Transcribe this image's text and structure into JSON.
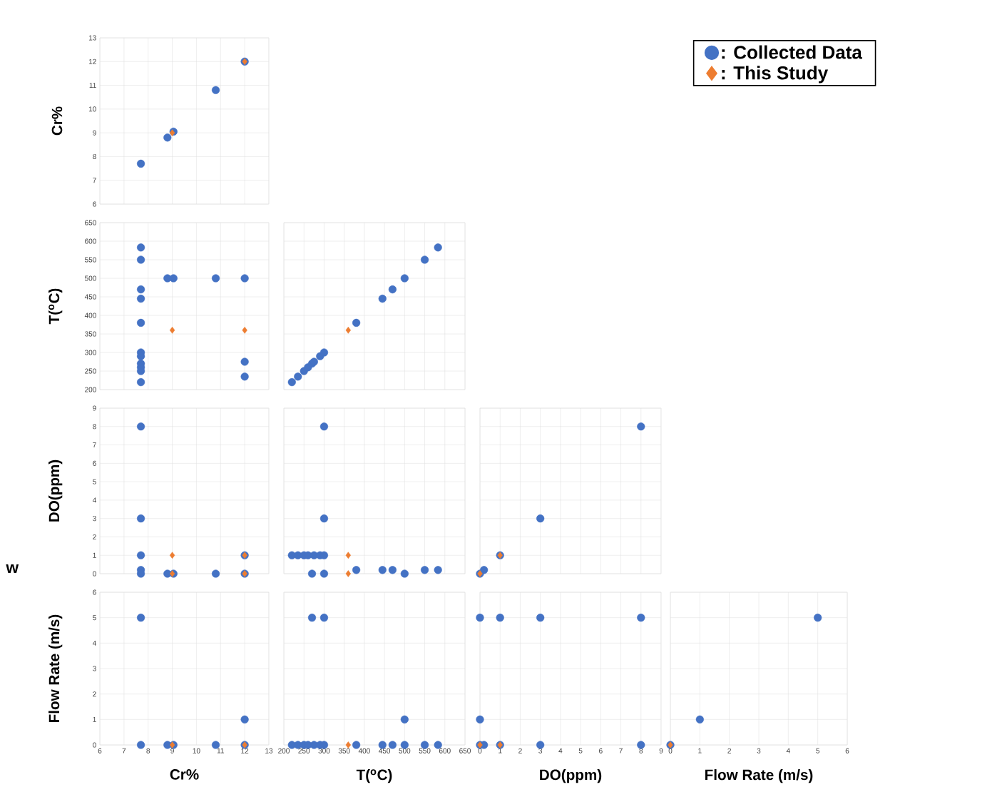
{
  "chart_data": [
    {
      "type": "scatter",
      "ylabel": "Cr%",
      "xlim": [
        6,
        13
      ],
      "ylim": [
        6,
        13
      ],
      "xticks": [
        6,
        7,
        8,
        9,
        10,
        11,
        12,
        13
      ],
      "yticks": [
        6,
        7,
        8,
        9,
        10,
        11,
        12,
        13
      ],
      "grid": true,
      "tick_labels": "y",
      "legend": "top right",
      "series": [
        {
          "name": ": Collected Data",
          "color": "#4472c4",
          "marker": "circle",
          "x": [
            7.7,
            8.8,
            9.05,
            10.8,
            12
          ],
          "values": [
            7.7,
            8.8,
            9.05,
            10.8,
            12
          ]
        },
        {
          "name": ": This Study",
          "color": "#ed7d31",
          "marker": "diamond",
          "x": [
            9,
            12
          ],
          "values": [
            9,
            12
          ]
        }
      ]
    },
    {
      "type": "scatter",
      "ylabel": "T($^{o}$C)",
      "xlim": [
        6,
        13
      ],
      "ylim": [
        200,
        650
      ],
      "xticks": [
        6,
        7,
        8,
        9,
        10,
        11,
        12,
        13
      ],
      "yticks": [
        200,
        250,
        300,
        350,
        400,
        450,
        500,
        550,
        600,
        650
      ],
      "grid": true,
      "tick_labels": "y",
      "series": [
        {
          "color": "#4472c4",
          "marker": "circle",
          "x": [
            7.7,
            7.7,
            7.7,
            7.7,
            7.7,
            7.7,
            7.7,
            7.7,
            7.7,
            7.7,
            7.7,
            8.8,
            9.05,
            10.8,
            12,
            12,
            12
          ],
          "values": [
            583,
            550,
            470,
            445,
            380,
            300,
            290,
            270,
            260,
            250,
            220,
            500,
            500,
            500,
            500,
            275,
            235
          ]
        },
        {
          "color": "#ed7d31",
          "marker": "diamond",
          "x": [
            9,
            12
          ],
          "values": [
            360,
            360
          ]
        }
      ]
    },
    {
      "type": "scatter",
      "xlim": [
        200,
        650
      ],
      "ylim": [
        200,
        650
      ],
      "xticks": [
        200,
        250,
        300,
        350,
        400,
        450,
        500,
        550,
        600,
        650
      ],
      "yticks": [
        200,
        250,
        300,
        350,
        400,
        450,
        500,
        550,
        600,
        650
      ],
      "grid": true,
      "tick_labels": false,
      "series": [
        {
          "color": "#4472c4",
          "marker": "circle",
          "x": [
            220,
            235,
            250,
            260,
            270,
            275,
            290,
            300,
            380,
            445,
            470,
            500,
            550,
            583
          ],
          "values": [
            220,
            235,
            250,
            260,
            270,
            275,
            290,
            300,
            380,
            445,
            470,
            500,
            550,
            583
          ]
        },
        {
          "color": "#ed7d31",
          "marker": "diamond",
          "x": [
            360
          ],
          "values": [
            360
          ]
        }
      ]
    },
    {
      "type": "scatter",
      "ylabel": "DO(ppm)",
      "annotations": [
        "w"
      ],
      "xlim": [
        6,
        13
      ],
      "ylim": [
        0,
        9
      ],
      "xticks": [
        6,
        7,
        8,
        9,
        10,
        11,
        12,
        13
      ],
      "yticks": [
        0,
        1,
        2,
        3,
        4,
        5,
        6,
        7,
        8,
        9
      ],
      "grid": true,
      "tick_labels": "y",
      "series": [
        {
          "color": "#4472c4",
          "marker": "circle",
          "x": [
            7.7,
            7.7,
            7.7,
            7.7,
            7.7,
            8.8,
            9.05,
            10.8,
            12,
            12
          ],
          "values": [
            8,
            3,
            1,
            0.2,
            0,
            0,
            0,
            0,
            1,
            0
          ]
        },
        {
          "color": "#ed7d31",
          "marker": "diamond",
          "x": [
            9,
            9,
            12,
            12
          ],
          "values": [
            1,
            0,
            1,
            0
          ]
        }
      ]
    },
    {
      "type": "scatter",
      "xlim": [
        200,
        650
      ],
      "ylim": [
        0,
        9
      ],
      "xticks": [
        200,
        250,
        300,
        350,
        400,
        450,
        500,
        550,
        600,
        650
      ],
      "yticks": [
        0,
        1,
        2,
        3,
        4,
        5,
        6,
        7,
        8,
        9
      ],
      "grid": true,
      "tick_labels": false,
      "series": [
        {
          "color": "#4472c4",
          "marker": "circle",
          "x": [
            220,
            235,
            250,
            260,
            275,
            290,
            300,
            300,
            300,
            270,
            300,
            500,
            380,
            445,
            470,
            550,
            583
          ],
          "values": [
            1,
            1,
            1,
            1,
            1,
            1,
            1,
            8,
            3,
            0,
            0,
            0,
            0.2,
            0.2,
            0.2,
            0.2,
            0.2
          ]
        },
        {
          "color": "#ed7d31",
          "marker": "diamond",
          "x": [
            360,
            360
          ],
          "values": [
            1,
            0
          ]
        }
      ]
    },
    {
      "type": "scatter",
      "xlim": [
        0,
        9
      ],
      "ylim": [
        0,
        9
      ],
      "xticks": [
        0,
        1,
        2,
        3,
        4,
        5,
        6,
        7,
        8,
        9
      ],
      "yticks": [
        0,
        1,
        2,
        3,
        4,
        5,
        6,
        7,
        8,
        9
      ],
      "grid": true,
      "tick_labels": false,
      "series": [
        {
          "color": "#4472c4",
          "marker": "circle",
          "x": [
            0,
            0.2,
            1,
            3,
            8
          ],
          "values": [
            0,
            0.2,
            1,
            3,
            8
          ]
        },
        {
          "color": "#ed7d31",
          "marker": "diamond",
          "x": [
            0,
            1
          ],
          "values": [
            0,
            1
          ]
        }
      ]
    },
    {
      "type": "scatter",
      "xlabel": "Cr%",
      "ylabel": "Flow Rate (m/s)",
      "xlim": [
        6,
        13
      ],
      "ylim": [
        0,
        6
      ],
      "xticks": [
        6,
        7,
        8,
        9,
        10,
        11,
        12,
        13
      ],
      "yticks": [
        0,
        1,
        2,
        3,
        4,
        5,
        6
      ],
      "grid": true,
      "series": [
        {
          "color": "#4472c4",
          "marker": "circle",
          "x": [
            7.7,
            7.7,
            8.8,
            9.05,
            10.8,
            12,
            12
          ],
          "values": [
            5,
            0,
            0,
            0,
            0,
            1,
            0
          ]
        },
        {
          "color": "#ed7d31",
          "marker": "diamond",
          "x": [
            9,
            12
          ],
          "values": [
            0,
            0
          ]
        }
      ]
    },
    {
      "type": "scatter",
      "xlabel": "T($^{o}$C)",
      "xlim": [
        200,
        650
      ],
      "ylim": [
        0,
        6
      ],
      "xticks": [
        200,
        250,
        300,
        350,
        400,
        450,
        500,
        550,
        600,
        650
      ],
      "yticks": [
        0,
        1,
        2,
        3,
        4,
        5,
        6
      ],
      "grid": true,
      "tick_labels": "x",
      "series": [
        {
          "color": "#4472c4",
          "marker": "circle",
          "x": [
            270,
            300,
            500,
            220,
            235,
            250,
            260,
            275,
            290,
            300,
            380,
            445,
            470,
            500,
            550,
            583
          ],
          "values": [
            5,
            5,
            1,
            0,
            0,
            0,
            0,
            0,
            0,
            0,
            0,
            0,
            0,
            0,
            0,
            0
          ]
        },
        {
          "color": "#ed7d31",
          "marker": "diamond",
          "x": [
            360
          ],
          "values": [
            0
          ]
        }
      ]
    },
    {
      "type": "scatter",
      "xlabel": "DO(ppm)",
      "xlim": [
        0,
        9
      ],
      "ylim": [
        0,
        6
      ],
      "xticks": [
        0,
        1,
        2,
        3,
        4,
        5,
        6,
        7,
        8,
        9
      ],
      "yticks": [
        0,
        1,
        2,
        3,
        4,
        5,
        6
      ],
      "grid": true,
      "tick_labels": "x",
      "series": [
        {
          "color": "#4472c4",
          "marker": "circle",
          "x": [
            0,
            1,
            3,
            8,
            0,
            0,
            0.2,
            1,
            3,
            8
          ],
          "values": [
            5,
            5,
            5,
            5,
            1,
            0,
            0,
            0,
            0,
            0
          ]
        },
        {
          "color": "#ed7d31",
          "marker": "diamond",
          "x": [
            0,
            1
          ],
          "values": [
            0,
            0
          ]
        }
      ]
    },
    {
      "type": "scatter",
      "xlabel": "Flow Rate (m/s)",
      "xlim": [
        0,
        6
      ],
      "ylim": [
        0,
        6
      ],
      "xticks": [
        0,
        1,
        2,
        3,
        4,
        5,
        6
      ],
      "yticks": [
        0,
        1,
        2,
        3,
        4,
        5,
        6
      ],
      "grid": true,
      "tick_labels": "x",
      "series": [
        {
          "color": "#4472c4",
          "marker": "circle",
          "x": [
            0,
            1,
            5
          ],
          "values": [
            0,
            1,
            5
          ]
        },
        {
          "color": "#ed7d31",
          "marker": "diamond",
          "x": [
            0
          ],
          "values": [
            0
          ]
        }
      ]
    }
  ]
}
